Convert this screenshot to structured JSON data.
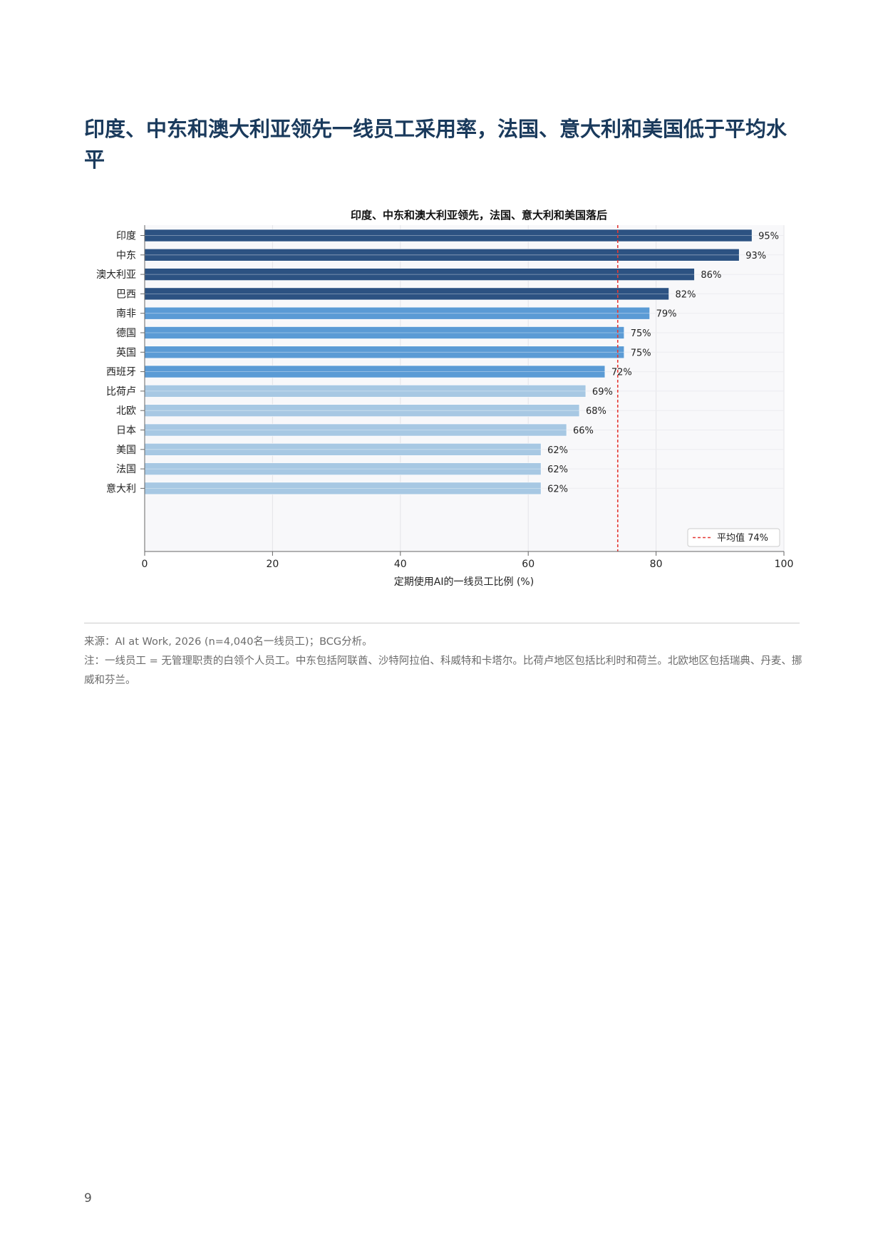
{
  "page": {
    "heading": "印度、中东和澳大利亚领先一线员工采用率，法国、意大利和美国低于平均水平",
    "source": "来源：AI at Work, 2026 (n=4,040名一线员工)；BCG分析。",
    "note": "注：一线员工 = 无管理职责的白领个人员工。中东包括阿联酋、沙特阿拉伯、科威特和卡塔尔。比荷卢地区包括比利时和荷兰。北欧地区包括瑞典、丹麦、挪威和芬兰。",
    "page_number": "9"
  },
  "chart_data": {
    "type": "bar",
    "orientation": "horizontal",
    "title": "印度、中东和澳大利亚领先，法国、意大利和美国落后",
    "xlabel": "定期使用AI的一线员工比例 (%)",
    "ylabel": "",
    "xlim": [
      0,
      100
    ],
    "xticks": [
      0,
      20,
      40,
      60,
      80,
      100
    ],
    "grid": true,
    "categories": [
      "印度",
      "中东",
      "澳大利亚",
      "巴西",
      "南非",
      "德国",
      "英国",
      "西班牙",
      "比荷卢",
      "北欧",
      "日本",
      "美国",
      "法国",
      "意大利"
    ],
    "values": [
      95,
      93,
      86,
      82,
      79,
      75,
      75,
      72,
      69,
      68,
      66,
      62,
      62,
      62
    ],
    "value_labels": [
      "95%",
      "93%",
      "86%",
      "82%",
      "79%",
      "75%",
      "75%",
      "72%",
      "69%",
      "68%",
      "66%",
      "62%",
      "62%",
      "62%"
    ],
    "bar_colors": [
      "#2c5282",
      "#2c5282",
      "#2c5282",
      "#2c5282",
      "#5b9bd5",
      "#5b9bd5",
      "#5b9bd5",
      "#5b9bd5",
      "#a7c8e3",
      "#a7c8e3",
      "#a7c8e3",
      "#a7c8e3",
      "#a7c8e3",
      "#a7c8e3"
    ],
    "average": {
      "value": 74,
      "label": "平均值 74%",
      "color": "#e53935"
    },
    "legend_position": "bottom-right"
  }
}
